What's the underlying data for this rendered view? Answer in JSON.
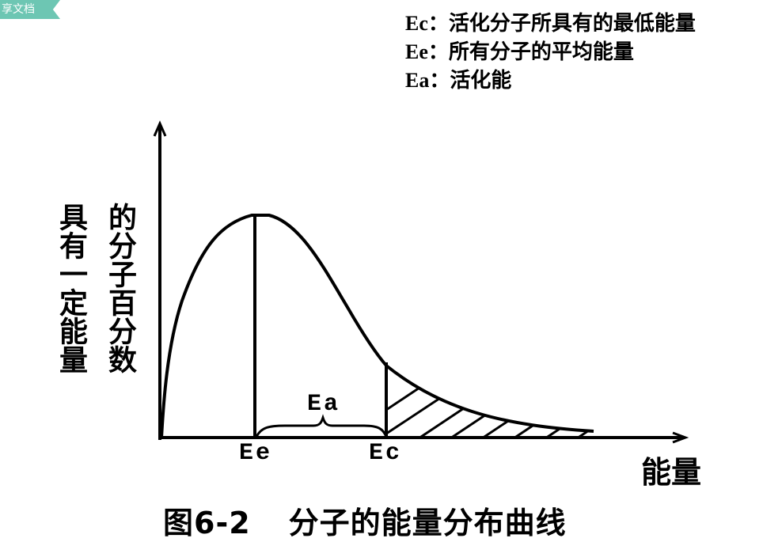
{
  "badge": {
    "text": "享文档"
  },
  "legend": [
    {
      "key": "Ec：",
      "text": "活化分子所具有的最低能量"
    },
    {
      "key": "Ee：",
      "text": "所有分子的平均能量"
    },
    {
      "key": "Ea：",
      "text": "活化能"
    }
  ],
  "axes": {
    "y_label_col1": "具有一定能量",
    "y_label_col2": "的分子百分数",
    "x_label": "能量"
  },
  "markers": {
    "ee": "Ee",
    "ec": "Ec",
    "ea": "Ea"
  },
  "caption": {
    "figure_no": "图6-2",
    "title": "分子的能量分布曲线"
  }
}
